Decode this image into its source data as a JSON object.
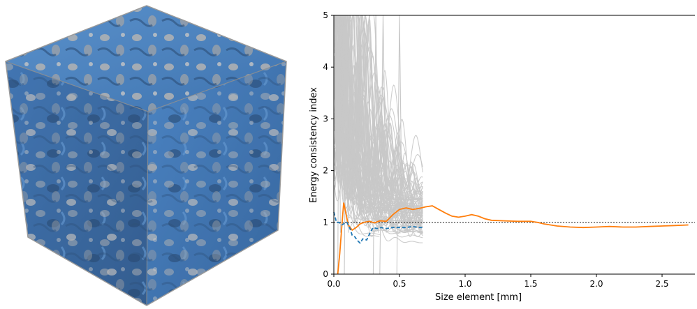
{
  "chart_data": {
    "type": "line",
    "xlabel": "Size element [mm]",
    "ylabel": "Energy consistency index",
    "xlim": [
      0,
      2.75
    ],
    "ylim": [
      0,
      5
    ],
    "xticks": [
      0.0,
      0.5,
      1.0,
      1.5,
      2.0,
      2.5
    ],
    "xtick_labels": [
      "0.0",
      "0.5",
      "1.0",
      "1.5",
      "2.0",
      "2.5"
    ],
    "yticks": [
      0,
      1,
      2,
      3,
      4,
      5
    ],
    "ytick_labels": [
      "0",
      "1",
      "2",
      "3",
      "4",
      "5"
    ],
    "grid": false,
    "reference_line": {
      "y": 1.0,
      "style": "dotted",
      "color": "#000000"
    },
    "colors": {
      "sample_curves": "#c8c8c8",
      "mean_curve": "#ff7f0e",
      "dashed_curve": "#1f77b4"
    },
    "series": [
      {
        "style": "solid",
        "color": "#ff7f0e",
        "x": [
          0.03,
          0.045,
          0.06,
          0.075,
          0.09,
          0.11,
          0.14,
          0.17,
          0.2,
          0.23,
          0.27,
          0.31,
          0.35,
          0.4,
          0.45,
          0.5,
          0.55,
          0.6,
          0.65,
          0.7,
          0.75,
          0.8,
          0.85,
          0.9,
          0.95,
          1.0,
          1.05,
          1.1,
          1.15,
          1.2,
          1.3,
          1.4,
          1.5,
          1.55,
          1.6,
          1.7,
          1.8,
          1.9,
          2.0,
          2.1,
          2.2,
          2.3,
          2.4,
          2.5,
          2.6,
          2.7
        ],
        "y": [
          0.0,
          0.4,
          0.9,
          1.38,
          1.2,
          0.95,
          0.85,
          0.9,
          0.97,
          1.0,
          1.02,
          0.99,
          1.03,
          1.02,
          1.15,
          1.25,
          1.28,
          1.25,
          1.27,
          1.3,
          1.32,
          1.25,
          1.18,
          1.12,
          1.1,
          1.12,
          1.15,
          1.12,
          1.07,
          1.04,
          1.03,
          1.02,
          1.02,
          1.0,
          0.97,
          0.93,
          0.91,
          0.9,
          0.91,
          0.92,
          0.91,
          0.91,
          0.92,
          0.93,
          0.94,
          0.95
        ]
      },
      {
        "style": "dashed",
        "color": "#1f77b4",
        "x": [
          0.0,
          0.02,
          0.04,
          0.06,
          0.08,
          0.1,
          0.12,
          0.14,
          0.16,
          0.18,
          0.2,
          0.22,
          0.25,
          0.28,
          0.3,
          0.33,
          0.36,
          0.4,
          0.45,
          0.5,
          0.55,
          0.6,
          0.65,
          0.68
        ],
        "y": [
          1.2,
          1.0,
          1.0,
          0.95,
          0.98,
          1.0,
          0.9,
          0.75,
          0.72,
          0.65,
          0.6,
          0.68,
          0.66,
          0.82,
          0.9,
          0.88,
          0.9,
          0.88,
          0.9,
          0.9,
          0.9,
          0.92,
          0.9,
          0.9
        ]
      }
    ]
  }
}
